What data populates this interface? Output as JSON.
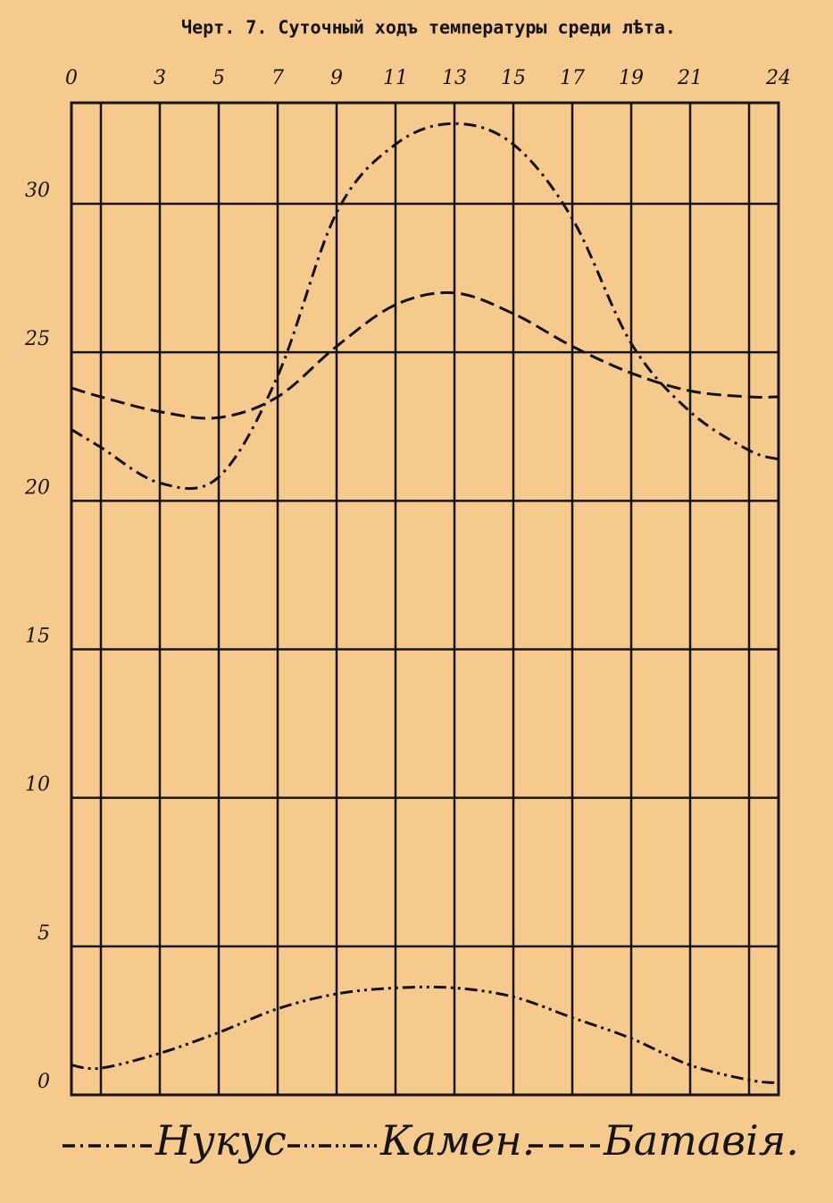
{
  "chart_data": {
    "type": "line",
    "title": "Черт. 7. Суточный ходъ температуры среди лѣта.",
    "x": [
      0,
      1,
      3,
      5,
      7,
      9,
      11,
      13,
      15,
      17,
      19,
      21,
      23,
      24
    ],
    "series": [
      {
        "name": "Нукус",
        "color": "#111111",
        "dash": "14 6 3 6",
        "values": [
          22.4,
          21.8,
          20.6,
          20.8,
          24.2,
          29.7,
          32.0,
          32.7,
          32.0,
          29.5,
          25.3,
          23.0,
          21.7,
          21.4
        ]
      },
      {
        "name": "Камен.",
        "color": "#111111",
        "dash": "14 5 3 5 3 5",
        "values": [
          1.0,
          0.9,
          1.4,
          2.1,
          2.9,
          3.4,
          3.6,
          3.6,
          3.3,
          2.6,
          1.9,
          1.0,
          0.5,
          0.4
        ]
      },
      {
        "name": "Батавія.",
        "color": "#111111",
        "dash": "16 7",
        "values": [
          23.8,
          23.5,
          23.0,
          22.8,
          23.5,
          25.2,
          26.6,
          27.0,
          26.3,
          25.2,
          24.3,
          23.7,
          23.5,
          23.5
        ]
      }
    ],
    "xlim": [
      0,
      24
    ],
    "xticks": [
      0,
      3,
      5,
      7,
      9,
      11,
      13,
      15,
      17,
      19,
      21,
      24
    ],
    "minor_xticks": [
      1,
      23
    ],
    "ylim": [
      0,
      33.4
    ],
    "yticks": [
      0,
      5,
      10,
      15,
      20,
      25,
      30
    ],
    "grid": true
  }
}
